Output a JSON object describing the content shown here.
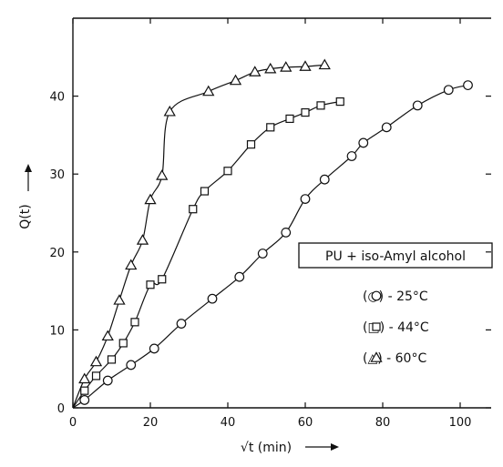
{
  "chart_data": {
    "type": "scatter",
    "xlabel": "√t (min)",
    "ylabel": "Q(t)",
    "xlim": [
      0,
      108
    ],
    "ylim": [
      0,
      50
    ],
    "xticks": [
      "0",
      "20",
      "40",
      "60",
      "80",
      "100"
    ],
    "yticks": [
      "0",
      "10",
      "20",
      "30",
      "40"
    ],
    "xtick_values": [
      0,
      20,
      40,
      60,
      80,
      100
    ],
    "ytick_values": [
      0,
      10,
      20,
      30,
      40
    ],
    "grid": false,
    "legend_title": "PU + iso-Amyl alcohol",
    "legend_position": "right",
    "series": [
      {
        "name": "25°C",
        "legend_label": "(○) - 25°C",
        "marker": "circle",
        "x": [
          3,
          9,
          15,
          21,
          28,
          36,
          43,
          49,
          55,
          60,
          65,
          72,
          75,
          81,
          89,
          97,
          102
        ],
        "y": [
          1,
          3.5,
          5.5,
          7.6,
          10.8,
          14,
          16.8,
          19.8,
          22.5,
          26.8,
          29.3,
          32.3,
          34,
          36,
          38.8,
          40.8,
          41.4
        ]
      },
      {
        "name": "44°C",
        "legend_label": "(□) - 44°C",
        "marker": "square",
        "x": [
          3,
          6,
          10,
          13,
          16,
          20,
          23,
          31,
          34,
          40,
          46,
          51,
          56,
          60,
          64,
          69
        ],
        "y": [
          2.2,
          4.1,
          6.2,
          8.3,
          11,
          15.8,
          16.5,
          25.5,
          27.8,
          30.4,
          33.8,
          36,
          37.1,
          37.9,
          38.8,
          39.3
        ]
      },
      {
        "name": "60°C",
        "legend_label": "(△) - 60°C",
        "marker": "triangle",
        "x": [
          3,
          6,
          9,
          12,
          15,
          18,
          20,
          23,
          25,
          35,
          42,
          47,
          51,
          55,
          60,
          65
        ],
        "y": [
          3.7,
          5.9,
          9.2,
          13.8,
          18.3,
          21.5,
          26.7,
          29.8,
          38,
          40.6,
          42,
          43.1,
          43.5,
          43.7,
          43.8,
          44
        ]
      }
    ]
  }
}
